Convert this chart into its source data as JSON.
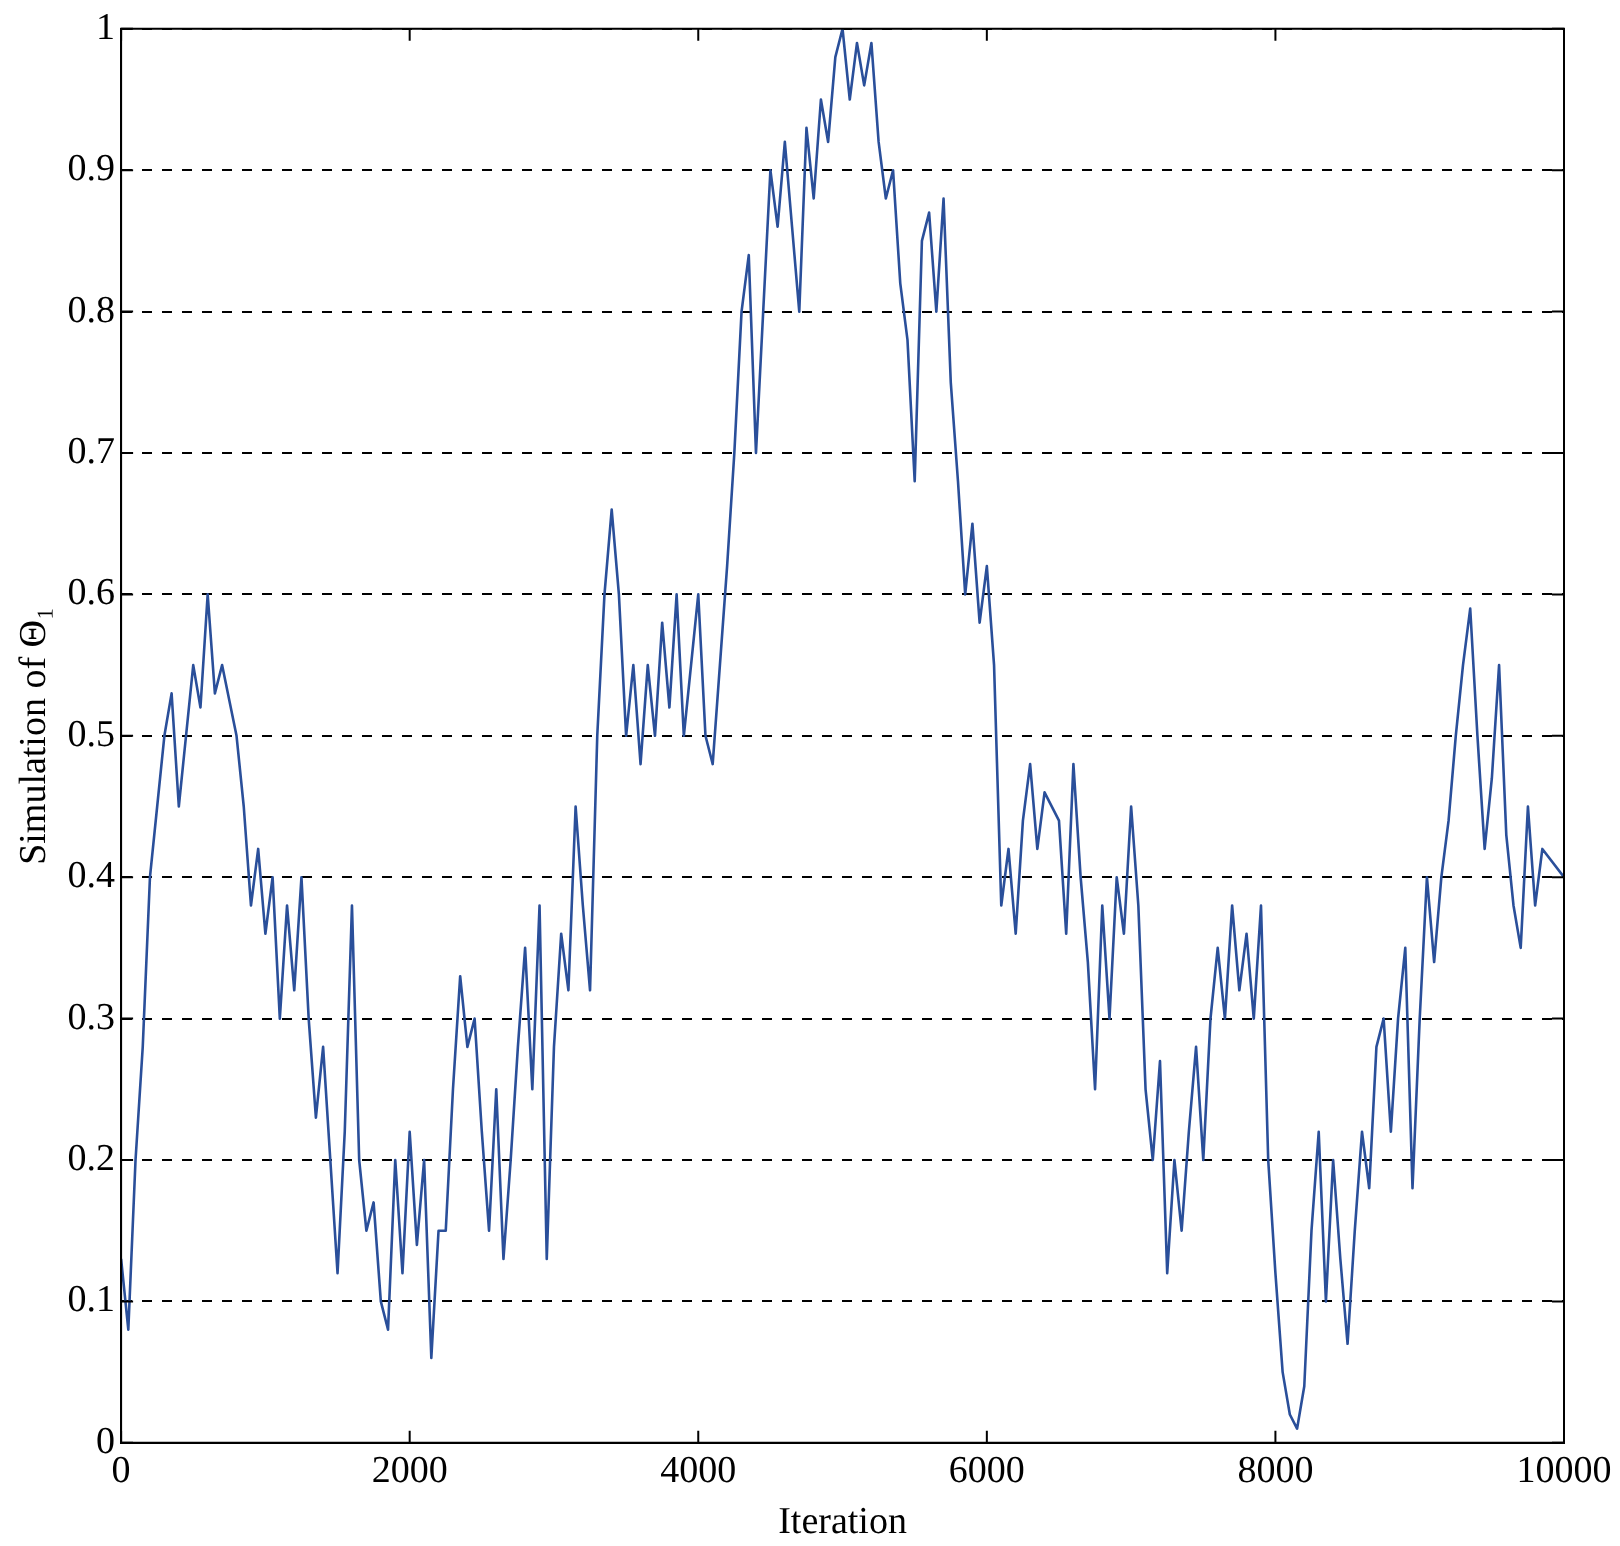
{
  "chart_data": {
    "type": "line",
    "xlabel": "Iteration",
    "ylabel": "Simulation of Θ₁",
    "grid": "y",
    "line_style": "solid",
    "marker": "none",
    "xlim": [
      0,
      10000
    ],
    "xticks": [
      0,
      2000,
      4000,
      6000,
      8000,
      10000
    ],
    "ylim": [
      0,
      1
    ],
    "yticks": [
      0,
      0.1,
      0.2,
      0.3,
      0.4,
      0.5,
      0.6,
      0.7,
      0.8,
      0.9,
      1
    ],
    "series": [
      {
        "color": "#2a4f9a",
        "x": [
          0,
          50,
          100,
          150,
          200,
          250,
          300,
          350,
          400,
          450,
          500,
          550,
          600,
          650,
          700,
          800,
          850,
          900,
          950,
          1000,
          1050,
          1100,
          1150,
          1200,
          1250,
          1300,
          1350,
          1400,
          1450,
          1500,
          1550,
          1600,
          1650,
          1700,
          1750,
          1800,
          1850,
          1900,
          1950,
          2000,
          2050,
          2100,
          2150,
          2200,
          2250,
          2300,
          2350,
          2400,
          2450,
          2500,
          2550,
          2600,
          2650,
          2700,
          2750,
          2800,
          2850,
          2900,
          2950,
          3000,
          3050,
          3100,
          3150,
          3200,
          3250,
          3300,
          3350,
          3400,
          3450,
          3500,
          3550,
          3600,
          3650,
          3700,
          3750,
          3800,
          3850,
          3900,
          3950,
          4000,
          4050,
          4100,
          4150,
          4200,
          4250,
          4300,
          4350,
          4400,
          4450,
          4500,
          4550,
          4600,
          4650,
          4700,
          4750,
          4800,
          4850,
          4900,
          4950,
          5000,
          5050,
          5100,
          5150,
          5200,
          5250,
          5300,
          5350,
          5400,
          5450,
          5500,
          5550,
          5600,
          5650,
          5700,
          5750,
          5800,
          5850,
          5900,
          5950,
          6000,
          6050,
          6100,
          6150,
          6200,
          6250,
          6300,
          6350,
          6400,
          6500,
          6550,
          6600,
          6650,
          6700,
          6750,
          6800,
          6850,
          6900,
          6950,
          7000,
          7050,
          7100,
          7150,
          7200,
          7250,
          7300,
          7350,
          7400,
          7450,
          7500,
          7550,
          7600,
          7650,
          7700,
          7750,
          7800,
          7850,
          7900,
          7950,
          8000,
          8050,
          8100,
          8150,
          8200,
          8250,
          8300,
          8350,
          8400,
          8450,
          8500,
          8550,
          8600,
          8650,
          8700,
          8750,
          8800,
          8850,
          8900,
          8950,
          9000,
          9050,
          9100,
          9150,
          9200,
          9250,
          9300,
          9350,
          9400,
          9450,
          9500,
          9550,
          9600,
          9650,
          9700,
          9750,
          9800,
          9850,
          10000
        ],
        "values": [
          0.13,
          0.08,
          0.2,
          0.28,
          0.4,
          0.45,
          0.5,
          0.53,
          0.45,
          0.5,
          0.55,
          0.52,
          0.6,
          0.53,
          0.55,
          0.5,
          0.45,
          0.38,
          0.42,
          0.36,
          0.4,
          0.3,
          0.38,
          0.32,
          0.4,
          0.3,
          0.23,
          0.28,
          0.2,
          0.12,
          0.22,
          0.38,
          0.2,
          0.15,
          0.17,
          0.1,
          0.08,
          0.2,
          0.12,
          0.22,
          0.14,
          0.2,
          0.06,
          0.15,
          0.15,
          0.25,
          0.33,
          0.28,
          0.3,
          0.22,
          0.15,
          0.25,
          0.13,
          0.2,
          0.28,
          0.35,
          0.25,
          0.38,
          0.13,
          0.28,
          0.36,
          0.32,
          0.45,
          0.38,
          0.32,
          0.5,
          0.6,
          0.66,
          0.6,
          0.5,
          0.55,
          0.48,
          0.55,
          0.5,
          0.58,
          0.52,
          0.6,
          0.5,
          0.55,
          0.6,
          0.5,
          0.48,
          0.55,
          0.62,
          0.7,
          0.8,
          0.84,
          0.7,
          0.8,
          0.9,
          0.86,
          0.92,
          0.86,
          0.8,
          0.93,
          0.88,
          0.95,
          0.92,
          0.98,
          1.0,
          0.95,
          0.99,
          0.96,
          0.99,
          0.92,
          0.88,
          0.9,
          0.82,
          0.78,
          0.68,
          0.85,
          0.87,
          0.8,
          0.88,
          0.75,
          0.68,
          0.6,
          0.65,
          0.58,
          0.62,
          0.55,
          0.38,
          0.42,
          0.36,
          0.44,
          0.48,
          0.42,
          0.46,
          0.44,
          0.36,
          0.48,
          0.4,
          0.34,
          0.25,
          0.38,
          0.3,
          0.4,
          0.36,
          0.45,
          0.38,
          0.25,
          0.2,
          0.27,
          0.12,
          0.2,
          0.15,
          0.22,
          0.28,
          0.2,
          0.3,
          0.35,
          0.3,
          0.38,
          0.32,
          0.36,
          0.3,
          0.38,
          0.2,
          0.12,
          0.05,
          0.02,
          0.01,
          0.04,
          0.15,
          0.22,
          0.1,
          0.2,
          0.13,
          0.07,
          0.15,
          0.22,
          0.18,
          0.28,
          0.3,
          0.22,
          0.3,
          0.35,
          0.18,
          0.3,
          0.4,
          0.34,
          0.4,
          0.44,
          0.5,
          0.55,
          0.59,
          0.5,
          0.42,
          0.47,
          0.55,
          0.43,
          0.38,
          0.35,
          0.45,
          0.38,
          0.42,
          0.4
        ]
      }
    ]
  }
}
